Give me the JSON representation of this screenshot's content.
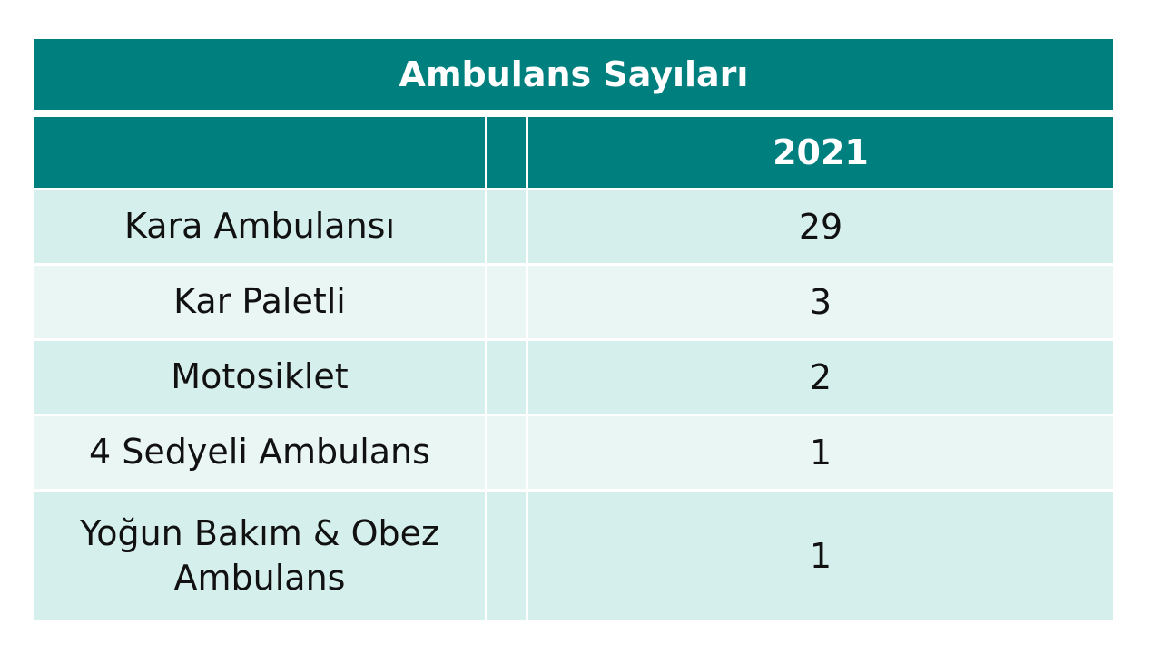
{
  "table": {
    "title": "Ambulans Sayıları",
    "header": {
      "year": "2021"
    },
    "rows": [
      {
        "label": "Kara Ambulansı",
        "value": "29"
      },
      {
        "label": "Kar Paletli",
        "value": "3"
      },
      {
        "label": "Motosiklet",
        "value": "2"
      },
      {
        "label": "4 Sedyeli Ambulans",
        "value": "1"
      },
      {
        "label": "Yoğun Bakım & Obez Ambulans",
        "value": "1"
      }
    ]
  },
  "colors": {
    "header_bg": "#007f7f",
    "row_odd_bg": "#d5efec",
    "row_even_bg": "#e9f6f4"
  }
}
